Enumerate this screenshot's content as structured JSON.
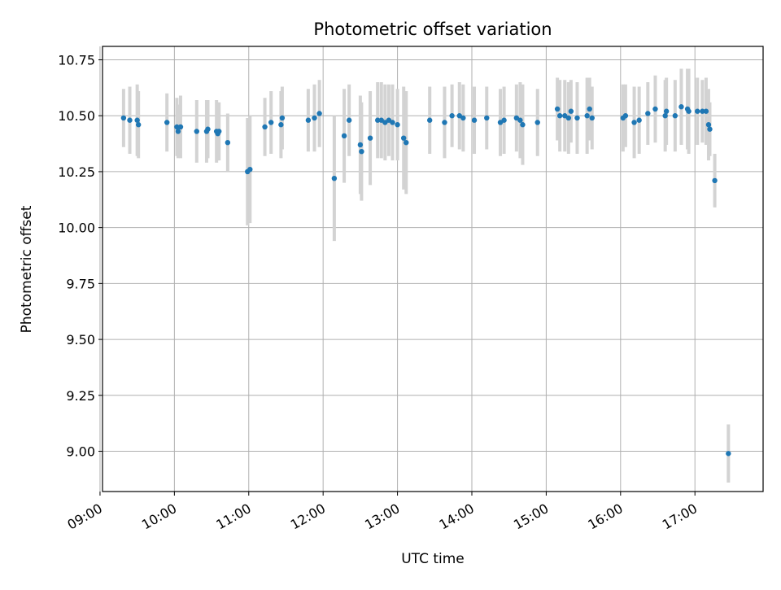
{
  "chart_data": {
    "type": "scatter",
    "title": "Photometric offset variation",
    "xlabel": "UTC time",
    "ylabel": "Photometric offset",
    "grid": true,
    "legend": "none",
    "colors": {
      "point": "#1f77b4",
      "errorbar": "#d3d3d3",
      "grid": "#b0b0b0",
      "axis": "#000000"
    },
    "xlim": [
      "09:02",
      "17:55"
    ],
    "ylim": [
      8.82,
      10.81
    ],
    "x_ticks": [
      "09:00",
      "10:00",
      "11:00",
      "12:00",
      "13:00",
      "14:00",
      "15:00",
      "16:00",
      "17:00"
    ],
    "y_ticks": [
      "9.00",
      "9.25",
      "9.50",
      "9.75",
      "10.00",
      "10.25",
      "10.50",
      "10.75"
    ],
    "series": [
      {
        "points": [
          {
            "x": "09:19",
            "y": 10.49,
            "err": 0.13
          },
          {
            "x": "09:24",
            "y": 10.48,
            "err": 0.15
          },
          {
            "x": "09:30",
            "y": 10.48,
            "err": 0.16
          },
          {
            "x": "09:31",
            "y": 10.46,
            "err": 0.15
          },
          {
            "x": "09:54",
            "y": 10.47,
            "err": 0.13
          },
          {
            "x": "10:02",
            "y": 10.45,
            "err": 0.13
          },
          {
            "x": "10:03",
            "y": 10.43,
            "err": 0.12
          },
          {
            "x": "10:05",
            "y": 10.45,
            "err": 0.14
          },
          {
            "x": "10:18",
            "y": 10.43,
            "err": 0.14
          },
          {
            "x": "10:26",
            "y": 10.43,
            "err": 0.14
          },
          {
            "x": "10:27",
            "y": 10.44,
            "err": 0.13
          },
          {
            "x": "10:34",
            "y": 10.43,
            "err": 0.14
          },
          {
            "x": "10:35",
            "y": 10.42,
            "err": 0.12
          },
          {
            "x": "10:36",
            "y": 10.43,
            "err": 0.13
          },
          {
            "x": "10:43",
            "y": 10.38,
            "err": 0.13
          },
          {
            "x": "10:59",
            "y": 10.25,
            "err": 0.24
          },
          {
            "x": "11:01",
            "y": 10.26,
            "err": 0.24
          },
          {
            "x": "11:13",
            "y": 10.45,
            "err": 0.13
          },
          {
            "x": "11:18",
            "y": 10.47,
            "err": 0.14
          },
          {
            "x": "11:26",
            "y": 10.46,
            "err": 0.15
          },
          {
            "x": "11:27",
            "y": 10.49,
            "err": 0.14
          },
          {
            "x": "11:48",
            "y": 10.48,
            "err": 0.14
          },
          {
            "x": "11:53",
            "y": 10.49,
            "err": 0.15
          },
          {
            "x": "11:57",
            "y": 10.51,
            "err": 0.15
          },
          {
            "x": "12:09",
            "y": 10.22,
            "err": 0.28
          },
          {
            "x": "12:17",
            "y": 10.41,
            "err": 0.21
          },
          {
            "x": "12:21",
            "y": 10.48,
            "err": 0.16
          },
          {
            "x": "12:30",
            "y": 10.37,
            "err": 0.22
          },
          {
            "x": "12:31",
            "y": 10.34,
            "err": 0.22
          },
          {
            "x": "12:38",
            "y": 10.4,
            "err": 0.21
          },
          {
            "x": "12:44",
            "y": 10.48,
            "err": 0.17
          },
          {
            "x": "12:47",
            "y": 10.48,
            "err": 0.17
          },
          {
            "x": "12:50",
            "y": 10.47,
            "err": 0.17
          },
          {
            "x": "12:53",
            "y": 10.48,
            "err": 0.16
          },
          {
            "x": "12:56",
            "y": 10.47,
            "err": 0.17
          },
          {
            "x": "13:00",
            "y": 10.46,
            "err": 0.16
          },
          {
            "x": "13:05",
            "y": 10.4,
            "err": 0.23
          },
          {
            "x": "13:07",
            "y": 10.38,
            "err": 0.23
          },
          {
            "x": "13:26",
            "y": 10.48,
            "err": 0.15
          },
          {
            "x": "13:38",
            "y": 10.47,
            "err": 0.16
          },
          {
            "x": "13:44",
            "y": 10.5,
            "err": 0.14
          },
          {
            "x": "13:50",
            "y": 10.5,
            "err": 0.15
          },
          {
            "x": "13:53",
            "y": 10.49,
            "err": 0.15
          },
          {
            "x": "14:02",
            "y": 10.48,
            "err": 0.15
          },
          {
            "x": "14:12",
            "y": 10.49,
            "err": 0.14
          },
          {
            "x": "14:23",
            "y": 10.47,
            "err": 0.15
          },
          {
            "x": "14:26",
            "y": 10.48,
            "err": 0.15
          },
          {
            "x": "14:36",
            "y": 10.49,
            "err": 0.15
          },
          {
            "x": "14:39",
            "y": 10.48,
            "err": 0.17
          },
          {
            "x": "14:41",
            "y": 10.46,
            "err": 0.18
          },
          {
            "x": "14:53",
            "y": 10.47,
            "err": 0.15
          },
          {
            "x": "15:09",
            "y": 10.53,
            "err": 0.14
          },
          {
            "x": "15:11",
            "y": 10.5,
            "err": 0.16
          },
          {
            "x": "15:15",
            "y": 10.5,
            "err": 0.16
          },
          {
            "x": "15:18",
            "y": 10.49,
            "err": 0.16
          },
          {
            "x": "15:20",
            "y": 10.52,
            "err": 0.14
          },
          {
            "x": "15:25",
            "y": 10.49,
            "err": 0.16
          },
          {
            "x": "15:33",
            "y": 10.5,
            "err": 0.17
          },
          {
            "x": "15:35",
            "y": 10.53,
            "err": 0.14
          },
          {
            "x": "15:37",
            "y": 10.49,
            "err": 0.14
          },
          {
            "x": "16:02",
            "y": 10.49,
            "err": 0.15
          },
          {
            "x": "16:04",
            "y": 10.5,
            "err": 0.14
          },
          {
            "x": "16:11",
            "y": 10.47,
            "err": 0.16
          },
          {
            "x": "16:15",
            "y": 10.48,
            "err": 0.15
          },
          {
            "x": "16:22",
            "y": 10.51,
            "err": 0.14
          },
          {
            "x": "16:28",
            "y": 10.53,
            "err": 0.15
          },
          {
            "x": "16:36",
            "y": 10.5,
            "err": 0.16
          },
          {
            "x": "16:37",
            "y": 10.52,
            "err": 0.15
          },
          {
            "x": "16:44",
            "y": 10.5,
            "err": 0.16
          },
          {
            "x": "16:49",
            "y": 10.54,
            "err": 0.17
          },
          {
            "x": "16:54",
            "y": 10.53,
            "err": 0.18
          },
          {
            "x": "16:55",
            "y": 10.52,
            "err": 0.19
          },
          {
            "x": "17:02",
            "y": 10.52,
            "err": 0.15
          },
          {
            "x": "17:06",
            "y": 10.52,
            "err": 0.14
          },
          {
            "x": "17:09",
            "y": 10.52,
            "err": 0.15
          },
          {
            "x": "17:11",
            "y": 10.46,
            "err": 0.16
          },
          {
            "x": "17:12",
            "y": 10.44,
            "err": 0.12
          },
          {
            "x": "17:16",
            "y": 10.21,
            "err": 0.12
          },
          {
            "x": "17:27",
            "y": 8.99,
            "err": 0.13
          }
        ]
      }
    ]
  }
}
